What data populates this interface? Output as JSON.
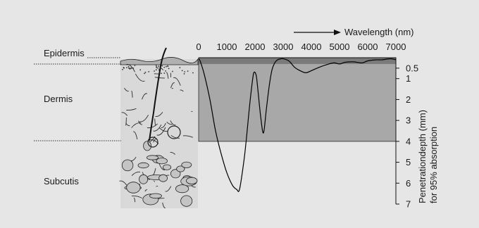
{
  "chart_data": {
    "type": "line",
    "x_axis": {
      "label": "Wavelength (nm)",
      "range": [
        0,
        7000
      ],
      "ticks": [
        0,
        1000,
        2000,
        3000,
        4000,
        5000,
        6000,
        7000
      ],
      "position": "top"
    },
    "y_axis": {
      "label_line1": "Penetrationdepth (mm)",
      "label_line2": "for 95% absorption",
      "range": [
        0,
        7
      ],
      "inverted": true,
      "position": "right",
      "ticks": [
        "0.5",
        "1",
        "2",
        "3",
        "4",
        "5",
        "6",
        "7"
      ]
    },
    "series": [
      {
        "x": [
          0,
          50,
          200,
          400,
          600,
          800,
          1000,
          1200,
          1350,
          1450,
          1600,
          1700,
          1800,
          1900,
          1950,
          2000,
          2050,
          2100,
          2200,
          2300,
          2400,
          2500,
          2600,
          2700,
          2800,
          2900,
          3000,
          3200,
          3400,
          3600,
          3800,
          4000,
          4200,
          4500,
          4800,
          5000,
          5200,
          5500,
          5800,
          6000,
          6300,
          6500,
          6800,
          7000
        ],
        "y": [
          0.05,
          0.15,
          0.8,
          2.0,
          3.5,
          4.6,
          5.5,
          6.1,
          6.3,
          6.3,
          5.0,
          3.8,
          2.4,
          1.2,
          0.75,
          0.7,
          0.9,
          1.5,
          2.8,
          3.6,
          2.5,
          1.4,
          0.6,
          0.25,
          0.1,
          0.06,
          0.05,
          0.15,
          0.45,
          0.62,
          0.72,
          0.62,
          0.5,
          0.35,
          0.25,
          0.3,
          0.22,
          0.2,
          0.25,
          0.15,
          0.1,
          0.1,
          0.05,
          0.1
        ],
        "color": "#000000"
      }
    ],
    "grid": false,
    "legend": "none"
  },
  "skin_layers": {
    "epidermis": "Epidermis",
    "dermis": "Dermis",
    "subcutis": "Subcutis",
    "epidermis_depth_mm": 0.5,
    "dermis_depth_mm": 4
  },
  "colors": {
    "background": "#e6e6e6",
    "epidermis_band": "#7a7a7a",
    "dermis_band": "#a8a8a8",
    "curve": "#000000"
  }
}
